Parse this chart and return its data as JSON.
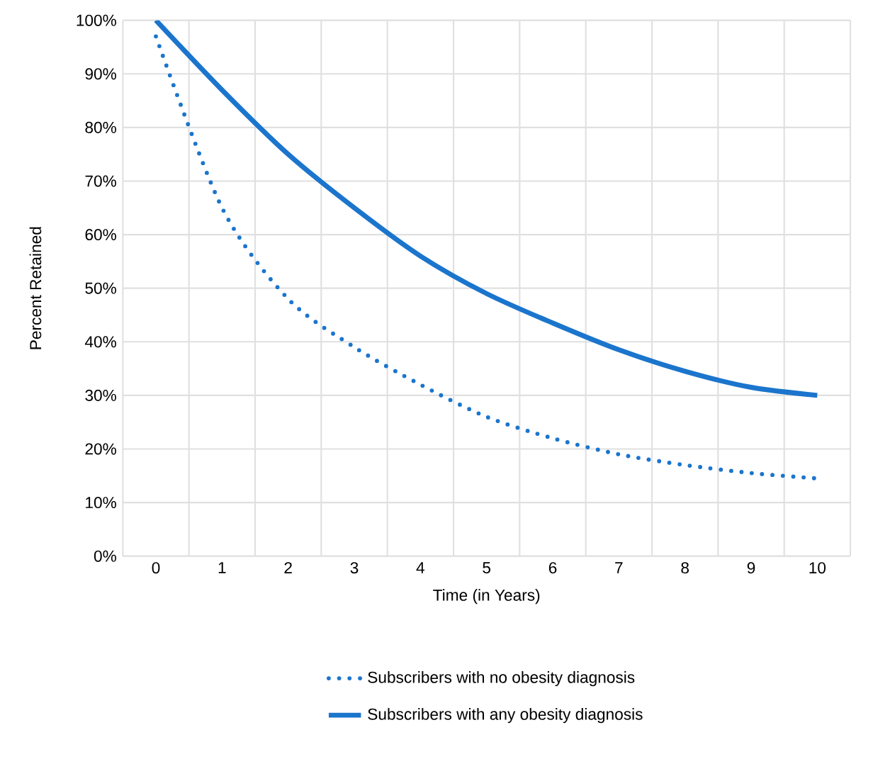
{
  "chart_data": {
    "type": "line",
    "xlabel": "Time (in Years)",
    "ylabel": "Percent Retained",
    "categories": [
      "0",
      "1",
      "2",
      "3",
      "4",
      "5",
      "6",
      "7",
      "8",
      "9",
      "10"
    ],
    "series": [
      {
        "name": "Subscribers with no obesity diagnosis",
        "color": "#1b75cc",
        "line_style": "dotted",
        "values": [
          97,
          65,
          48,
          39,
          32,
          26,
          22,
          19,
          17,
          15.5,
          14.5
        ]
      },
      {
        "name": "Subscribers with any obesity diagnosis",
        "color": "#1b75cc",
        "line_style": "solid",
        "values": [
          100,
          87,
          75,
          65,
          56,
          49,
          43.5,
          38.5,
          34.5,
          31.5,
          30
        ]
      }
    ],
    "ylim": [
      0,
      100
    ],
    "yticks": [
      {
        "value": 0,
        "label": "0%"
      },
      {
        "value": 10,
        "label": "10%"
      },
      {
        "value": 20,
        "label": "20%"
      },
      {
        "value": 30,
        "label": "30%"
      },
      {
        "value": 40,
        "label": "40%"
      },
      {
        "value": 50,
        "label": "50%"
      },
      {
        "value": 60,
        "label": "60%"
      },
      {
        "value": 70,
        "label": "70%"
      },
      {
        "value": 80,
        "label": "80%"
      },
      {
        "value": 90,
        "label": "90%"
      },
      {
        "value": 100,
        "label": "100%"
      }
    ],
    "grid": true,
    "legend": "bottom",
    "marker": "none"
  }
}
